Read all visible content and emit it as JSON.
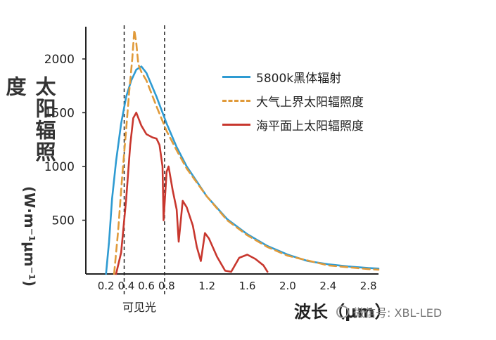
{
  "chart_data": {
    "type": "line",
    "ylabel": "太阳辐照度",
    "yunit": "(W·m⁻¹μm⁻¹)",
    "xlabel": "波长（μm）",
    "xlim": [
      0.0,
      2.9
    ],
    "ylim": [
      0,
      2300
    ],
    "xticks": [
      "0.2",
      "0.4",
      "0.6",
      "0.8",
      "1.2",
      "1.6",
      "2.0",
      "2.4",
      "2.8"
    ],
    "xtick_values": [
      0.2,
      0.4,
      0.6,
      0.8,
      1.2,
      1.6,
      2.0,
      2.4,
      2.8
    ],
    "yticks": [
      "500",
      "1000",
      "1500",
      "2000"
    ],
    "ytick_values": [
      500,
      1000,
      1500,
      2000
    ],
    "visible_band": {
      "label": "可见光",
      "from": 0.38,
      "to": 0.78
    },
    "series": [
      {
        "name": "5800k黑体辐射",
        "color": "#2e9bd2",
        "style": "solid",
        "points": [
          [
            0.2,
            0
          ],
          [
            0.23,
            300
          ],
          [
            0.26,
            700
          ],
          [
            0.3,
            1050
          ],
          [
            0.35,
            1400
          ],
          [
            0.4,
            1650
          ],
          [
            0.45,
            1800
          ],
          [
            0.5,
            1900
          ],
          [
            0.55,
            1930
          ],
          [
            0.6,
            1870
          ],
          [
            0.7,
            1650
          ],
          [
            0.8,
            1400
          ],
          [
            0.9,
            1180
          ],
          [
            1.0,
            1000
          ],
          [
            1.2,
            720
          ],
          [
            1.4,
            510
          ],
          [
            1.6,
            370
          ],
          [
            1.8,
            260
          ],
          [
            2.0,
            180
          ],
          [
            2.2,
            120
          ],
          [
            2.4,
            90
          ],
          [
            2.6,
            70
          ],
          [
            2.8,
            55
          ],
          [
            2.9,
            50
          ]
        ]
      },
      {
        "name": "大气上界太阳辐照度",
        "color": "#e09a3a",
        "style": "dashed",
        "points": [
          [
            0.28,
            0
          ],
          [
            0.32,
            400
          ],
          [
            0.36,
            900
          ],
          [
            0.4,
            1350
          ],
          [
            0.43,
            1700
          ],
          [
            0.46,
            2000
          ],
          [
            0.48,
            2270
          ],
          [
            0.5,
            2150
          ],
          [
            0.52,
            1950
          ],
          [
            0.55,
            1880
          ],
          [
            0.6,
            1800
          ],
          [
            0.7,
            1560
          ],
          [
            0.8,
            1330
          ],
          [
            0.9,
            1150
          ],
          [
            1.0,
            980
          ],
          [
            1.2,
            720
          ],
          [
            1.4,
            500
          ],
          [
            1.6,
            360
          ],
          [
            1.8,
            250
          ],
          [
            2.0,
            170
          ],
          [
            2.4,
            80
          ],
          [
            2.8,
            45
          ],
          [
            2.9,
            40
          ]
        ]
      },
      {
        "name": "海平面上太阳辐照度",
        "color": "#c8372e",
        "style": "solid",
        "points": [
          [
            0.3,
            0
          ],
          [
            0.35,
            200
          ],
          [
            0.4,
            700
          ],
          [
            0.44,
            1200
          ],
          [
            0.47,
            1450
          ],
          [
            0.5,
            1500
          ],
          [
            0.55,
            1380
          ],
          [
            0.6,
            1300
          ],
          [
            0.66,
            1270
          ],
          [
            0.7,
            1260
          ],
          [
            0.73,
            1200
          ],
          [
            0.76,
            1000
          ],
          [
            0.77,
            500
          ],
          [
            0.8,
            950
          ],
          [
            0.82,
            1000
          ],
          [
            0.86,
            780
          ],
          [
            0.9,
            600
          ],
          [
            0.92,
            300
          ],
          [
            0.96,
            680
          ],
          [
            1.0,
            620
          ],
          [
            1.06,
            450
          ],
          [
            1.1,
            250
          ],
          [
            1.14,
            120
          ],
          [
            1.18,
            380
          ],
          [
            1.22,
            330
          ],
          [
            1.3,
            160
          ],
          [
            1.38,
            30
          ],
          [
            1.44,
            20
          ],
          [
            1.52,
            150
          ],
          [
            1.6,
            180
          ],
          [
            1.68,
            140
          ],
          [
            1.76,
            80
          ],
          [
            1.8,
            20
          ]
        ]
      }
    ],
    "legend": "top-right"
  },
  "watermark": "微信号: XBL-LED"
}
